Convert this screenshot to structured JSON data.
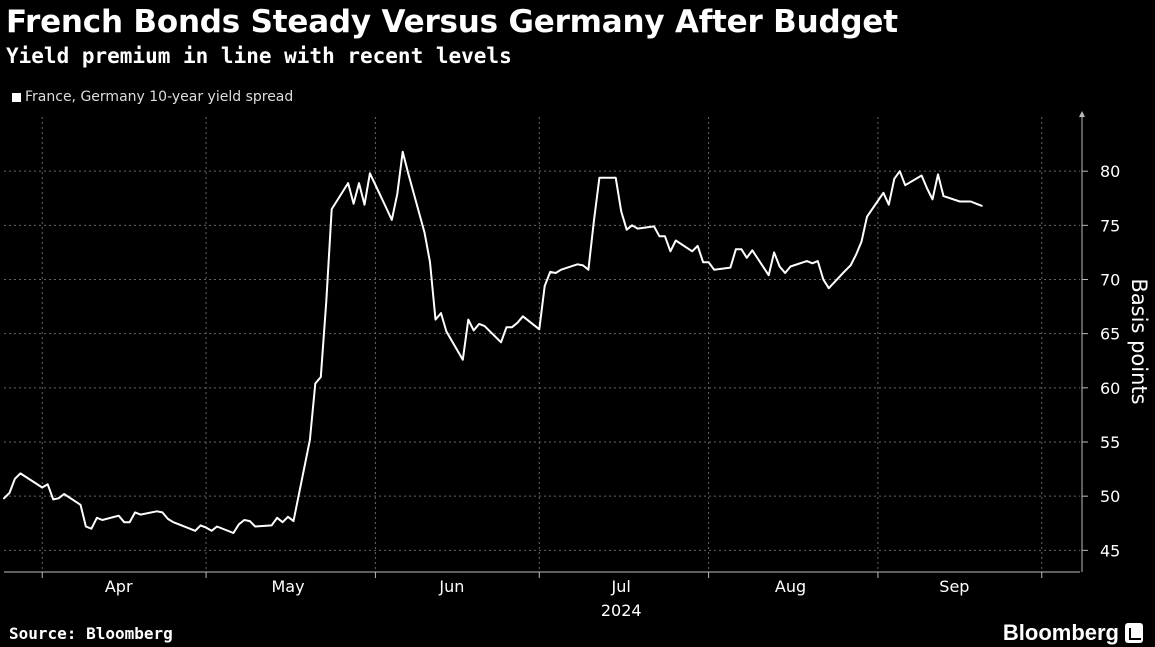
{
  "chart_data": {
    "type": "line",
    "title": "French Bonds Steady Versus Germany After Budget",
    "subtitle": "Yield premium in line with recent levels",
    "ylabel": "Basis points",
    "ylim": [
      43,
      85
    ],
    "yticks": [
      45,
      50,
      55,
      60,
      65,
      70,
      75,
      80
    ],
    "xlim": [
      "2024-03-25",
      "2024-10-08"
    ],
    "x_month_labels": [
      {
        "label": "Apr",
        "date": "2024-04-15"
      },
      {
        "label": "May",
        "date": "2024-05-16"
      },
      {
        "label": "Jun",
        "date": "2024-06-15"
      },
      {
        "label": "Jul",
        "date": "2024-07-16"
      },
      {
        "label": "Aug",
        "date": "2024-08-16"
      },
      {
        "label": "Sep",
        "date": "2024-09-15"
      }
    ],
    "x_year_label": "2024",
    "grid": true,
    "legend_position": "top-left",
    "series": [
      {
        "name": "France, Germany 10-year yield spread",
        "color": "#ffffff",
        "points": [
          [
            "2024-03-25",
            49.8
          ],
          [
            "2024-03-26",
            50.3
          ],
          [
            "2024-03-27",
            51.6
          ],
          [
            "2024-03-28",
            52.1
          ],
          [
            "2024-04-01",
            50.8
          ],
          [
            "2024-04-02",
            51.1
          ],
          [
            "2024-04-03",
            49.7
          ],
          [
            "2024-04-04",
            49.8
          ],
          [
            "2024-04-05",
            50.2
          ],
          [
            "2024-04-08",
            49.2
          ],
          [
            "2024-04-09",
            47.2
          ],
          [
            "2024-04-10",
            47.0
          ],
          [
            "2024-04-11",
            48.0
          ],
          [
            "2024-04-12",
            47.8
          ],
          [
            "2024-04-15",
            48.2
          ],
          [
            "2024-04-16",
            47.6
          ],
          [
            "2024-04-17",
            47.6
          ],
          [
            "2024-04-18",
            48.5
          ],
          [
            "2024-04-19",
            48.3
          ],
          [
            "2024-04-22",
            48.6
          ],
          [
            "2024-04-23",
            48.5
          ],
          [
            "2024-04-24",
            47.9
          ],
          [
            "2024-04-25",
            47.6
          ],
          [
            "2024-04-26",
            47.4
          ],
          [
            "2024-04-29",
            46.8
          ],
          [
            "2024-04-30",
            47.3
          ],
          [
            "2024-05-01",
            47.1
          ],
          [
            "2024-05-02",
            46.8
          ],
          [
            "2024-05-03",
            47.2
          ],
          [
            "2024-05-06",
            46.6
          ],
          [
            "2024-05-07",
            47.4
          ],
          [
            "2024-05-08",
            47.8
          ],
          [
            "2024-05-09",
            47.7
          ],
          [
            "2024-05-10",
            47.2
          ],
          [
            "2024-05-13",
            47.3
          ],
          [
            "2024-05-14",
            48.0
          ],
          [
            "2024-05-15",
            47.6
          ],
          [
            "2024-05-16",
            48.1
          ],
          [
            "2024-05-17",
            47.7
          ],
          [
            "2024-05-20",
            55.2
          ],
          [
            "2024-05-21",
            60.4
          ],
          [
            "2024-05-22",
            61.0
          ],
          [
            "2024-05-23",
            68.0
          ],
          [
            "2024-05-24",
            76.5
          ],
          [
            "2024-05-27",
            78.9
          ],
          [
            "2024-05-28",
            77.0
          ],
          [
            "2024-05-29",
            78.9
          ],
          [
            "2024-05-30",
            76.9
          ],
          [
            "2024-05-31",
            79.8
          ],
          [
            "2024-06-03",
            76.6
          ],
          [
            "2024-06-04",
            75.5
          ],
          [
            "2024-06-05",
            77.9
          ],
          [
            "2024-06-06",
            81.8
          ],
          [
            "2024-06-07",
            79.8
          ],
          [
            "2024-06-10",
            74.3
          ],
          [
            "2024-06-11",
            71.6
          ],
          [
            "2024-06-12",
            66.3
          ],
          [
            "2024-06-13",
            66.9
          ],
          [
            "2024-06-14",
            65.2
          ],
          [
            "2024-06-17",
            62.6
          ],
          [
            "2024-06-18",
            66.3
          ],
          [
            "2024-06-19",
            65.3
          ],
          [
            "2024-06-20",
            65.9
          ],
          [
            "2024-06-21",
            65.7
          ],
          [
            "2024-06-24",
            64.2
          ],
          [
            "2024-06-25",
            65.6
          ],
          [
            "2024-06-26",
            65.6
          ],
          [
            "2024-06-27",
            66.0
          ],
          [
            "2024-06-28",
            66.6
          ],
          [
            "2024-07-01",
            65.4
          ],
          [
            "2024-07-02",
            69.4
          ],
          [
            "2024-07-03",
            70.7
          ],
          [
            "2024-07-04",
            70.6
          ],
          [
            "2024-07-05",
            70.9
          ],
          [
            "2024-07-08",
            71.4
          ],
          [
            "2024-07-09",
            71.3
          ],
          [
            "2024-07-10",
            70.9
          ],
          [
            "2024-07-11",
            75.4
          ],
          [
            "2024-07-12",
            79.4
          ],
          [
            "2024-07-15",
            79.4
          ],
          [
            "2024-07-16",
            76.3
          ],
          [
            "2024-07-17",
            74.6
          ],
          [
            "2024-07-18",
            75.0
          ],
          [
            "2024-07-19",
            74.7
          ],
          [
            "2024-07-22",
            74.9
          ],
          [
            "2024-07-23",
            74.0
          ],
          [
            "2024-07-24",
            74.0
          ],
          [
            "2024-07-25",
            72.6
          ],
          [
            "2024-07-26",
            73.6
          ],
          [
            "2024-07-29",
            72.6
          ],
          [
            "2024-07-30",
            73.1
          ],
          [
            "2024-07-31",
            71.6
          ],
          [
            "2024-08-01",
            71.6
          ],
          [
            "2024-08-02",
            70.9
          ],
          [
            "2024-08-05",
            71.1
          ],
          [
            "2024-08-06",
            72.8
          ],
          [
            "2024-08-07",
            72.8
          ],
          [
            "2024-08-08",
            72.0
          ],
          [
            "2024-08-09",
            72.7
          ],
          [
            "2024-08-12",
            70.4
          ],
          [
            "2024-08-13",
            72.5
          ],
          [
            "2024-08-14",
            71.2
          ],
          [
            "2024-08-15",
            70.6
          ],
          [
            "2024-08-16",
            71.2
          ],
          [
            "2024-08-19",
            71.7
          ],
          [
            "2024-08-20",
            71.5
          ],
          [
            "2024-08-21",
            71.7
          ],
          [
            "2024-08-22",
            70.0
          ],
          [
            "2024-08-23",
            69.2
          ],
          [
            "2024-08-26",
            70.8
          ],
          [
            "2024-08-27",
            71.3
          ],
          [
            "2024-08-28",
            72.3
          ],
          [
            "2024-08-29",
            73.5
          ],
          [
            "2024-08-30",
            75.8
          ],
          [
            "2024-09-02",
            78.0
          ],
          [
            "2024-09-03",
            76.9
          ],
          [
            "2024-09-04",
            79.3
          ],
          [
            "2024-09-05",
            80.0
          ],
          [
            "2024-09-06",
            78.7
          ],
          [
            "2024-09-09",
            79.6
          ],
          [
            "2024-09-10",
            78.4
          ],
          [
            "2024-09-11",
            77.4
          ],
          [
            "2024-09-12",
            79.7
          ],
          [
            "2024-09-13",
            77.7
          ],
          [
            "2024-09-16",
            77.2
          ],
          [
            "2024-09-17",
            77.2
          ],
          [
            "2024-09-18",
            77.2
          ],
          [
            "2024-09-19",
            77.0
          ],
          [
            "2024-09-20",
            76.8
          ]
        ]
      }
    ]
  },
  "legend": {
    "label": "France, Germany 10-year yield spread"
  },
  "footer": {
    "source": "Source: Bloomberg",
    "brand": "Bloomberg"
  }
}
